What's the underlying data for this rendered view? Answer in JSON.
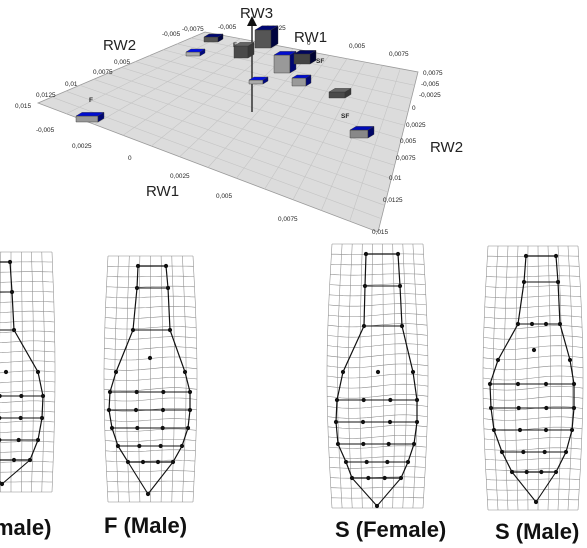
{
  "plot3d": {
    "axis_rw3": "RW3",
    "axis_rw2_back": "RW2",
    "axis_rw1_back": "RW1",
    "axis_rw2_right": "RW2",
    "axis_rw1_front": "RW1",
    "ticks_rw2_left": [
      "0,015",
      "0,0125",
      "0,01",
      "0,0075",
      "0,005"
    ],
    "ticks_rw1_back": [
      "-0,0075",
      "-0,005",
      "-0,0025",
      "0",
      "0,0025",
      "0,005",
      "0,0075"
    ],
    "ticks_rw3": [
      "-0,005",
      "0",
      "0,0025",
      "0,005",
      "0,0075"
    ],
    "ticks_right": [
      "0,0075",
      "-0,005",
      "-0,0025",
      "0",
      "0,0025",
      "0,005",
      "0,0075",
      "0,01",
      "0,0125",
      "0,015"
    ],
    "ticks_front": [
      "-0,005",
      "0,0025",
      "0",
      "0,0025",
      "0,005",
      "0,0075"
    ],
    "group_tags": [
      "F",
      "F",
      "SF",
      "SF"
    ]
  },
  "panels": [
    {
      "label": "male)"
    },
    {
      "label": "F (Male)"
    },
    {
      "label": "S (Female)"
    },
    {
      "label": "S (Male)"
    }
  ]
}
